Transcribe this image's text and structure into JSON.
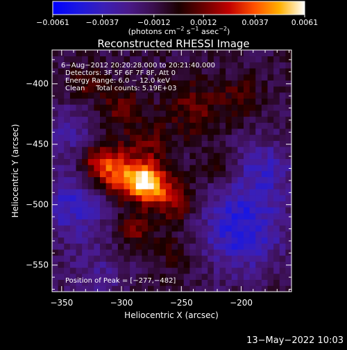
{
  "chart_data": {
    "type": "heatmap",
    "title": "Reconstructed RHESSI Image",
    "xlabel": "Heliocentric X (arcsec)",
    "ylabel": "Heliocentric Y (arcsec)",
    "xlim": [
      -358,
      -158
    ],
    "ylim": [
      -572,
      -372
    ],
    "xticks": [
      -350,
      -300,
      -250,
      -200
    ],
    "yticks": [
      -550,
      -500,
      -450,
      -400
    ],
    "xtick_labels": [
      "−350",
      "−300",
      "−250",
      "−200"
    ],
    "ytick_labels": [
      "−550",
      "−500",
      "−450",
      "−400"
    ],
    "colorbar": {
      "min": -0.0061,
      "max": 0.0061,
      "tick_values": [
        -0.0061,
        -0.0037,
        -0.0012,
        0.0012,
        0.0037,
        0.0061
      ],
      "tick_labels": [
        "−0.0061",
        "−0.0037",
        "−0.0012",
        "0.0012",
        "0.0037",
        "0.0061"
      ],
      "unit_main": "(photons cm",
      "unit_sup1": "−2",
      "unit_mid1": " s",
      "unit_sup2": "−1",
      "unit_mid2": " asec",
      "unit_sup3": "−2",
      "unit_end": ")"
    },
    "annotations": [
      "6−Aug−2012 20:20:28.000 to 20:21:40.000",
      "Detectors: 3F 5F 6F 7F 8F, Att 0",
      "Energy Range: 6.0 − 12.0 keV",
      "Clean     Total counts: 5.19E+03"
    ],
    "peak_text": "Position of Peak = [−277,−482]",
    "peak": {
      "x": -277,
      "y": -482
    },
    "sources": [
      {
        "x": -277,
        "y": -482,
        "value": 0.0061,
        "sigma": 11
      },
      {
        "x": -300,
        "y": -475,
        "value": 0.0042,
        "sigma": 14
      },
      {
        "x": -320,
        "y": -465,
        "value": 0.003,
        "sigma": 12
      },
      {
        "x": -255,
        "y": -498,
        "value": 0.0028,
        "sigma": 12
      },
      {
        "x": -290,
        "y": -520,
        "value": 0.0022,
        "sigma": 10
      },
      {
        "x": -240,
        "y": -420,
        "value": 0.002,
        "sigma": 16
      },
      {
        "x": -300,
        "y": -420,
        "value": 0.0018,
        "sigma": 14
      },
      {
        "x": -200,
        "y": -410,
        "value": 0.0016,
        "sigma": 12
      },
      {
        "x": -330,
        "y": -400,
        "value": 0.0015,
        "sigma": 10
      },
      {
        "x": -275,
        "y": -450,
        "value": 0.0016,
        "sigma": 12
      },
      {
        "x": -255,
        "y": -540,
        "value": 0.001,
        "sigma": 14
      },
      {
        "x": -220,
        "y": -470,
        "value": 0.0012,
        "sigma": 10
      },
      {
        "x": -340,
        "y": -500,
        "value": -0.003,
        "sigma": 20
      },
      {
        "x": -345,
        "y": -440,
        "value": -0.002,
        "sigma": 16
      },
      {
        "x": -200,
        "y": -520,
        "value": -0.0036,
        "sigma": 25
      },
      {
        "x": -180,
        "y": -470,
        "value": -0.0022,
        "sigma": 18
      },
      {
        "x": -320,
        "y": -560,
        "value": -0.0015,
        "sigma": 18
      }
    ]
  },
  "footer": {
    "date": "13−May−2022 10:03"
  }
}
